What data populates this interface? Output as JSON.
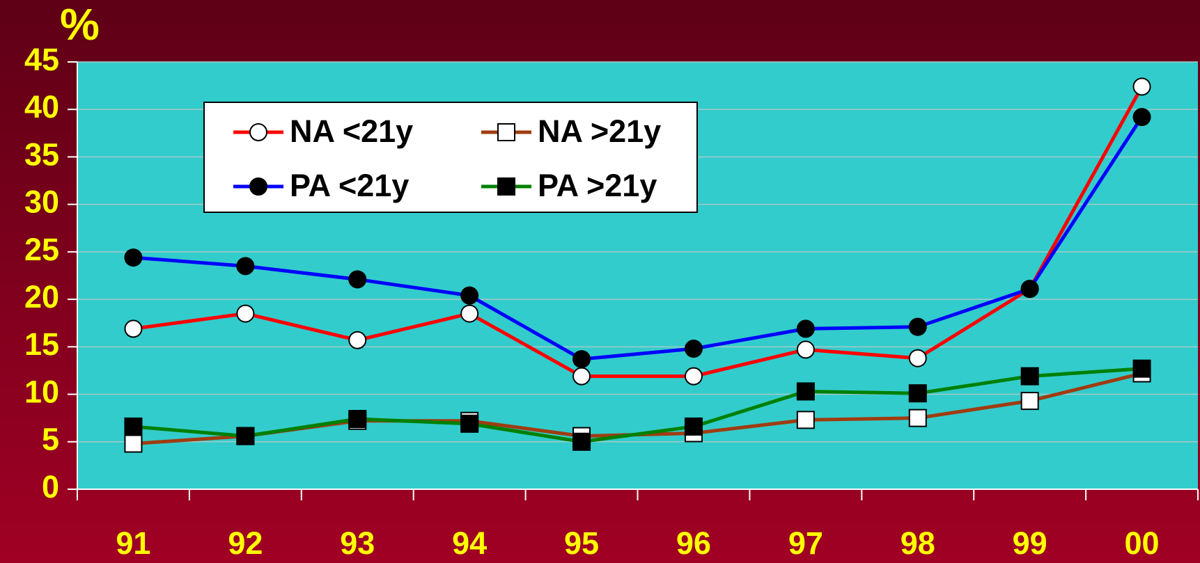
{
  "chart_data": {
    "type": "line",
    "y_label": "%",
    "categories": [
      "91",
      "92",
      "93",
      "94",
      "95",
      "96",
      "97",
      "98",
      "99",
      "00"
    ],
    "ylim": [
      0,
      45
    ],
    "yticks": [
      0,
      5,
      10,
      15,
      20,
      25,
      30,
      35,
      40,
      45
    ],
    "grid": true,
    "series": [
      {
        "name": "NA <21y",
        "color": "#ff0000",
        "marker": "circle",
        "marker_fill": "#ffffff",
        "values": [
          16.9,
          18.5,
          15.7,
          18.5,
          11.9,
          11.9,
          14.7,
          13.8,
          21.1,
          42.4
        ]
      },
      {
        "name": "PA <21y",
        "color": "#0000ff",
        "marker": "circle",
        "marker_fill": "#000000",
        "values": [
          24.4,
          23.5,
          22.1,
          20.4,
          13.7,
          14.8,
          16.9,
          17.1,
          21.1,
          39.2
        ]
      },
      {
        "name": "NA >21y",
        "color": "#a03c10",
        "marker": "square",
        "marker_fill": "#ffffff",
        "values": [
          4.8,
          5.6,
          7.2,
          7.2,
          5.6,
          5.9,
          7.3,
          7.5,
          9.3,
          12.2
        ]
      },
      {
        "name": "PA >21y",
        "color": "#008000",
        "marker": "square",
        "marker_fill": "#000000",
        "values": [
          6.6,
          5.6,
          7.4,
          6.9,
          5.0,
          6.6,
          10.3,
          10.1,
          11.9,
          12.7
        ]
      }
    ]
  }
}
